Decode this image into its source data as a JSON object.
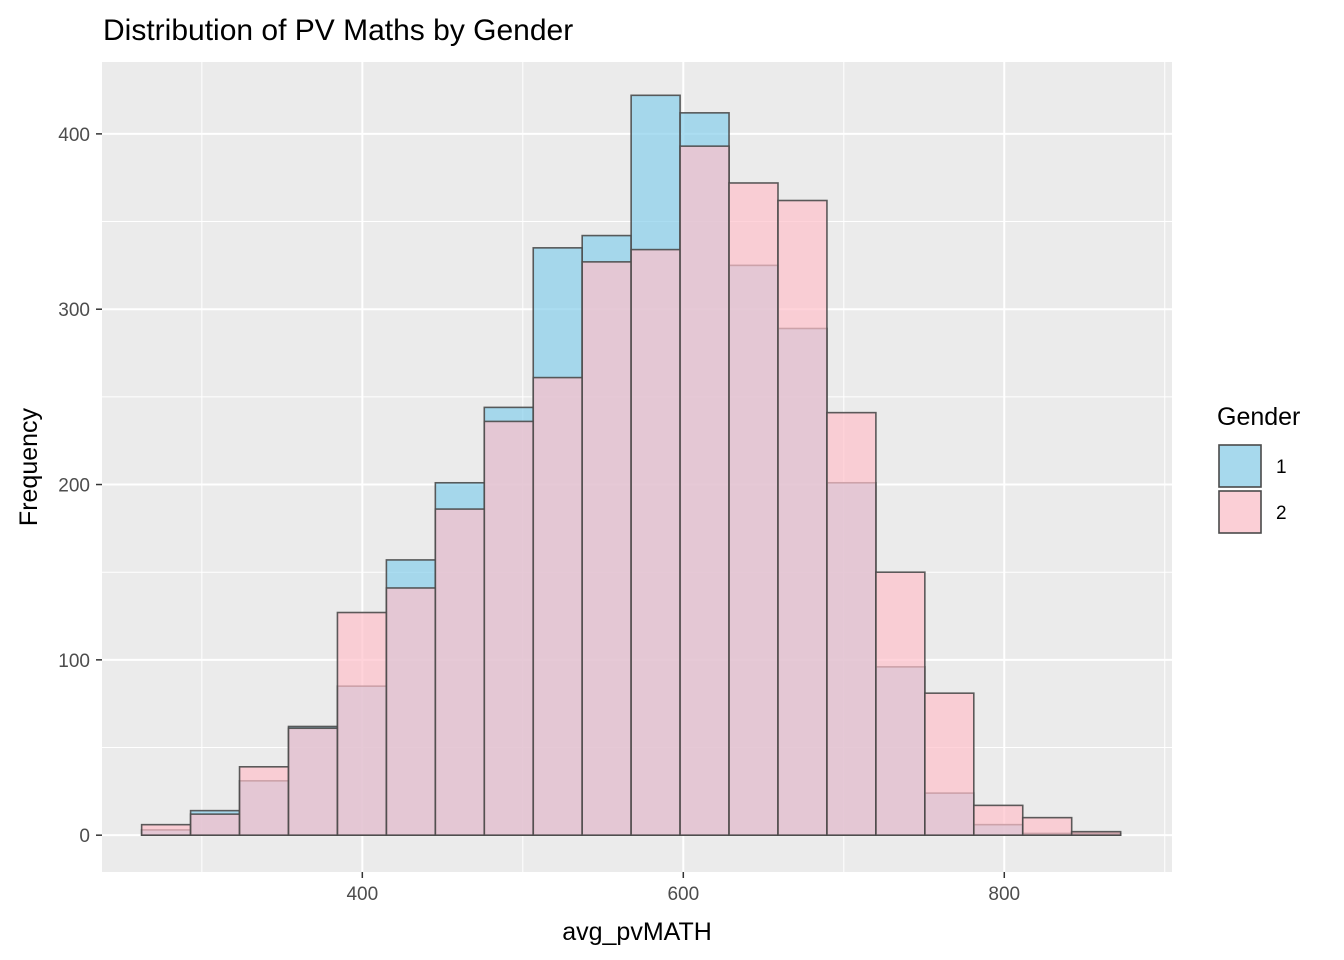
{
  "chart_data": {
    "type": "bar",
    "subtype": "overlapping-histogram",
    "title": "Distribution of PV Maths by Gender",
    "xlabel": "avg_pvMATH",
    "ylabel": "Frequency",
    "xlim": [
      237.8,
      904.5
    ],
    "ylim": [
      -21,
      441
    ],
    "x_ticks": [
      400,
      600,
      800
    ],
    "y_ticks": [
      0,
      100,
      200,
      300,
      400
    ],
    "grid": true,
    "legend": {
      "title": "Gender",
      "position": "right"
    },
    "bin_edges": [
      262.5,
      293.0,
      323.5,
      354.0,
      384.5,
      415.0,
      445.5,
      476.0,
      506.5,
      537.0,
      567.5,
      598.0,
      628.5,
      659.0,
      689.5,
      720.0,
      750.5,
      781.0,
      811.5,
      842.0,
      872.5
    ],
    "series": [
      {
        "name": "1",
        "color": "#87CEEB",
        "values": [
          3,
          14,
          31,
          62,
          85,
          157,
          201,
          244,
          335,
          342,
          422,
          412,
          325,
          289,
          201,
          96,
          24,
          6,
          1,
          1
        ]
      },
      {
        "name": "2",
        "color": "#FFC0CB",
        "values": [
          6,
          12,
          39,
          61,
          127,
          141,
          186,
          236,
          261,
          327,
          334,
          393,
          372,
          362,
          241,
          150,
          81,
          17,
          10,
          2
        ]
      }
    ]
  }
}
